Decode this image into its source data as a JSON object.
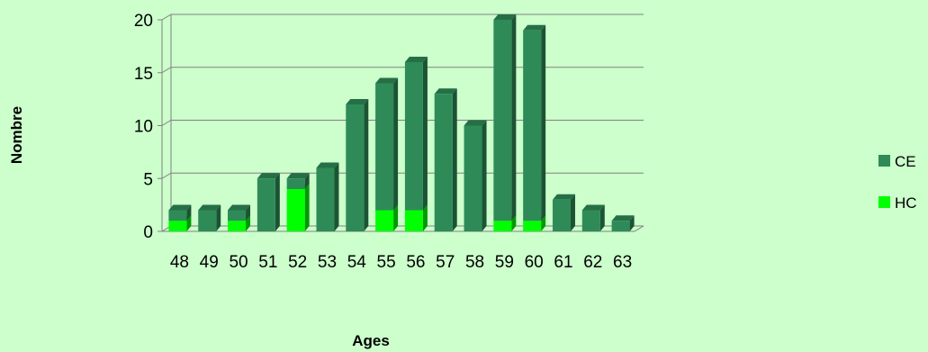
{
  "chart_data": {
    "type": "bar",
    "stacked": true,
    "three_d": true,
    "categories": [
      "48",
      "49",
      "50",
      "51",
      "52",
      "53",
      "54",
      "55",
      "56",
      "57",
      "58",
      "59",
      "60",
      "61",
      "62",
      "63"
    ],
    "series": [
      {
        "name": "HC",
        "color": "#00ff00",
        "values": [
          1,
          0,
          1,
          0,
          4,
          0,
          0,
          2,
          2,
          0,
          0,
          1,
          1,
          0,
          0,
          0
        ]
      },
      {
        "name": "CE",
        "color": "#2e8b57",
        "values": [
          1,
          2,
          1,
          5,
          1,
          6,
          12,
          12,
          14,
          13,
          10,
          19,
          18,
          3,
          2,
          1
        ]
      }
    ],
    "legend_order": [
      "CE",
      "HC"
    ],
    "title": "",
    "xlabel": "Ages",
    "ylabel": "Nombre",
    "ylim": [
      0,
      20
    ],
    "yticks": [
      0,
      5,
      10,
      15,
      20
    ],
    "grid": true,
    "legend_position": "right"
  }
}
